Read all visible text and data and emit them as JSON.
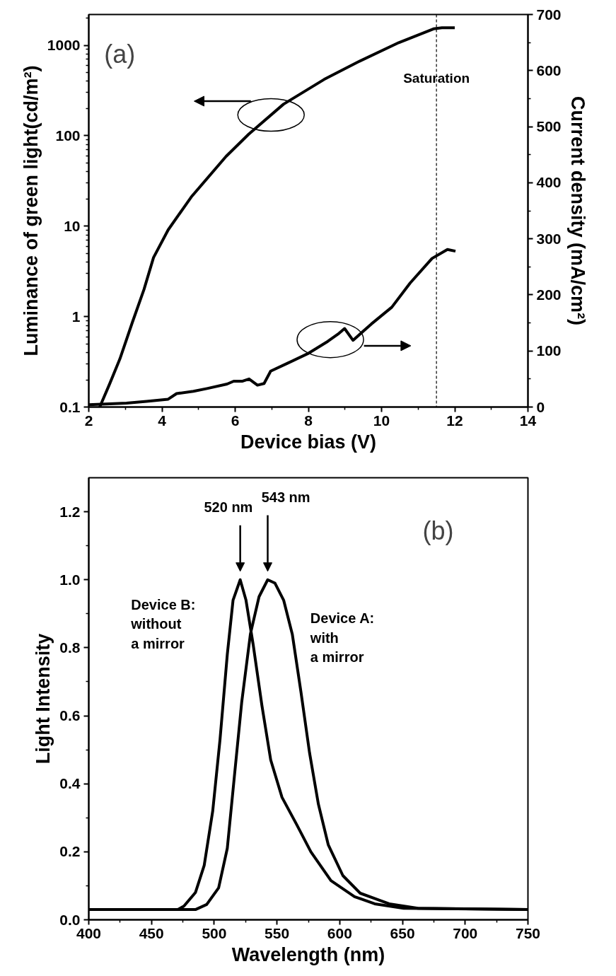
{
  "chart_data": [
    {
      "type": "line",
      "xlabel": "Device bias (V)",
      "ylabel": "Luminance of green light(cd/m²)",
      "y2label": "Current density (mA/cm²)",
      "xlim": [
        2,
        14
      ],
      "xticks": [
        2,
        4,
        6,
        8,
        10,
        12,
        14
      ],
      "ylim": [
        0.1,
        2190
      ],
      "yticks": [
        0.1,
        1,
        10,
        100,
        1000
      ],
      "y2lim": [
        0,
        700
      ],
      "y2ticks": [
        0,
        100,
        200,
        300,
        400,
        500,
        600,
        700
      ],
      "log": "y",
      "grid": false,
      "legend": false,
      "series": [
        {
          "color": "#000000",
          "x": [
            2.3,
            2.57,
            2.85,
            3.19,
            3.51,
            3.77,
            4.17,
            4.8,
            5.75,
            6.37,
            7.32,
            8.43,
            9.37,
            10.47,
            11.42,
            11.65,
            12.0
          ],
          "values": [
            0.1,
            0.18,
            0.34,
            0.86,
            2.0,
            4.5,
            9.1,
            21,
            59,
            104,
            223,
            419,
            658,
            1070,
            1520,
            1560,
            1560
          ]
        },
        {
          "color": "#000000",
          "axis": "y2",
          "x": [
            2.0,
            3.03,
            3.58,
            4.17,
            4.4,
            4.86,
            5.23,
            5.78,
            5.96,
            6.19,
            6.38,
            6.61,
            6.79,
            6.97,
            7.43,
            7.98,
            8.53,
            8.81,
            8.99,
            9.22,
            9.72,
            10.28,
            10.78,
            11.38,
            11.8,
            12.02
          ],
          "values": [
            4,
            7,
            10,
            14,
            24,
            28,
            33,
            41,
            46,
            46,
            50,
            39,
            42,
            64,
            78,
            95,
            117,
            130,
            140,
            119,
            148,
            178,
            221,
            265,
            281,
            278
          ]
        }
      ],
      "ref_lines": [
        {
          "axis": "x",
          "value": 11.5,
          "label": "Saturation",
          "line_style": "dashed",
          "color": "#000000"
        }
      ],
      "annotations": [
        "(a)"
      ]
    },
    {
      "type": "line",
      "xlabel": "Wavelength (nm)",
      "ylabel": "Light Intensity",
      "xlim": [
        400,
        750
      ],
      "xticks": [
        400,
        450,
        500,
        550,
        600,
        650,
        700,
        750
      ],
      "ylim": [
        0,
        1.3
      ],
      "yticks": [
        {
          "value": 0,
          "label": "0.0"
        },
        0.2,
        0.4,
        0.6,
        0.8,
        {
          "value": 1,
          "label": "1.0"
        },
        1.2
      ],
      "grid": false,
      "legend": false,
      "series": [
        {
          "name": "Device B:\nwithout\na mirror",
          "color": "#000000",
          "x": [
            400,
            471,
            475.8,
            485,
            492,
            498.8,
            504.6,
            510.4,
            515,
            520.7,
            525.3,
            531,
            538,
            545,
            554,
            565.7,
            577,
            593,
            611.8,
            627.9,
            651,
            750
          ],
          "values": [
            0.03,
            0.03,
            0.04,
            0.08,
            0.16,
            0.32,
            0.53,
            0.78,
            0.94,
            1.0,
            0.94,
            0.81,
            0.63,
            0.47,
            0.36,
            0.28,
            0.2,
            0.115,
            0.068,
            0.047,
            0.034,
            0.03
          ]
        },
        {
          "name": "Device A:\nwith\na mirror",
          "color": "#000000",
          "x": [
            400,
            485,
            494,
            503.5,
            510.4,
            516,
            521.9,
            528.8,
            535.7,
            542.6,
            548.4,
            555.3,
            562.2,
            569.1,
            576,
            583,
            590.9,
            602.5,
            616.4,
            639.4,
            662.4,
            750
          ],
          "values": [
            0.03,
            0.03,
            0.045,
            0.094,
            0.21,
            0.42,
            0.64,
            0.84,
            0.95,
            1.0,
            0.99,
            0.94,
            0.84,
            0.67,
            0.49,
            0.34,
            0.22,
            0.13,
            0.078,
            0.047,
            0.034,
            0.03
          ]
        }
      ],
      "annotations": [
        "520 nm",
        "543 nm",
        "(b)"
      ]
    }
  ]
}
